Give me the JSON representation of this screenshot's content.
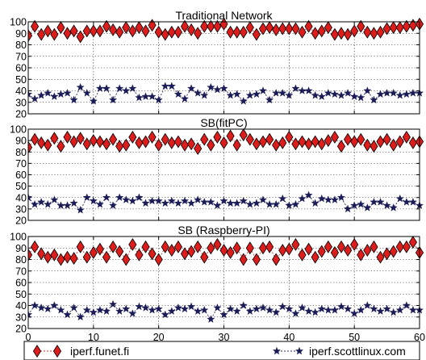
{
  "chart_data": [
    {
      "type": "line",
      "title": "Traditional Network",
      "x": [
        0,
        1,
        2,
        3,
        4,
        5,
        6,
        7,
        8,
        9,
        10,
        11,
        12,
        13,
        14,
        15,
        16,
        17,
        18,
        19,
        20,
        21,
        22,
        23,
        24,
        25,
        26,
        27,
        28,
        29,
        30,
        31,
        32,
        33,
        34,
        35,
        36,
        37,
        38,
        39,
        40,
        41,
        42,
        43,
        44,
        45,
        46,
        47,
        48,
        49,
        50,
        51,
        52,
        53,
        54,
        55,
        56,
        57,
        58,
        59,
        60
      ],
      "xlim": [
        0,
        60
      ],
      "ylim": [
        20,
        100
      ],
      "yticks": [
        20,
        30,
        40,
        50,
        60,
        70,
        80,
        90,
        100
      ],
      "grid": true,
      "series": [
        {
          "name": "iperf.funet.fi",
          "values": [
            88,
            96,
            89,
            92,
            89,
            95,
            90,
            92,
            87,
            92,
            92,
            92,
            96,
            93,
            91,
            95,
            92,
            95,
            92,
            97,
            91,
            89,
            91,
            91,
            96,
            93,
            90,
            96,
            96,
            96,
            98,
            91,
            91,
            91,
            95,
            89,
            94,
            95,
            93,
            94,
            94,
            94,
            91,
            96,
            90,
            92,
            95,
            89,
            90,
            89,
            92,
            96,
            91,
            90,
            91,
            94,
            95,
            95,
            96,
            97,
            98
          ]
        },
        {
          "name": "iperf.scottlinux.com",
          "values": [
            37,
            33,
            36,
            38,
            35,
            37,
            38,
            32,
            43,
            38,
            31,
            42,
            42,
            32,
            42,
            40,
            42,
            34,
            35,
            35,
            32,
            44,
            44,
            37,
            33,
            42,
            38,
            36,
            43,
            41,
            42,
            36,
            37,
            31,
            36,
            37,
            40,
            32,
            38,
            38,
            36,
            42,
            40,
            40,
            36,
            35,
            38,
            37,
            36,
            38,
            35,
            34,
            40,
            32,
            37,
            38,
            38,
            36,
            37,
            38,
            38
          ]
        }
      ]
    },
    {
      "type": "line",
      "title": "SB(fitPC)",
      "x": [
        0,
        1,
        2,
        3,
        4,
        5,
        6,
        7,
        8,
        9,
        10,
        11,
        12,
        13,
        14,
        15,
        16,
        17,
        18,
        19,
        20,
        21,
        22,
        23,
        24,
        25,
        26,
        27,
        28,
        29,
        30,
        31,
        32,
        33,
        34,
        35,
        36,
        37,
        38,
        39,
        40,
        41,
        42,
        43,
        44,
        45,
        46,
        47,
        48,
        49,
        50,
        51,
        52,
        53,
        54,
        55,
        56,
        57,
        58,
        59,
        60
      ],
      "xlim": [
        0,
        60
      ],
      "ylim": [
        20,
        100
      ],
      "yticks": [
        20,
        30,
        40,
        50,
        60,
        70,
        80,
        90,
        100
      ],
      "grid": true,
      "series": [
        {
          "name": "iperf.funet.fi",
          "values": [
            84,
            91,
            88,
            86,
            92,
            85,
            93,
            89,
            92,
            87,
            90,
            89,
            87,
            91,
            85,
            86,
            93,
            88,
            89,
            93,
            86,
            91,
            88,
            89,
            86,
            87,
            83,
            91,
            86,
            93,
            88,
            94,
            86,
            95,
            91,
            87,
            89,
            91,
            86,
            88,
            93,
            87,
            89,
            87,
            89,
            87,
            90,
            93,
            85,
            91,
            89,
            91,
            86,
            85,
            89,
            91,
            86,
            89,
            93,
            88,
            89
          ]
        },
        {
          "name": "iperf.scottlinux.com",
          "values": [
            40,
            34,
            36,
            34,
            38,
            33,
            33,
            35,
            29,
            40,
            37,
            34,
            40,
            33,
            40,
            38,
            37,
            40,
            35,
            37,
            37,
            35,
            37,
            35,
            37,
            35,
            38,
            36,
            36,
            33,
            37,
            35,
            35,
            37,
            34,
            35,
            38,
            34,
            34,
            39,
            33,
            34,
            39,
            42,
            35,
            39,
            38,
            38,
            40,
            30,
            33,
            34,
            31,
            36,
            36,
            33,
            31,
            39,
            36,
            36,
            33
          ]
        }
      ]
    },
    {
      "type": "line",
      "title": "SB (Raspberry-PI)",
      "x": [
        0,
        1,
        2,
        3,
        4,
        5,
        6,
        7,
        8,
        9,
        10,
        11,
        12,
        13,
        14,
        15,
        16,
        17,
        18,
        19,
        20,
        21,
        22,
        23,
        24,
        25,
        26,
        27,
        28,
        29,
        30,
        31,
        32,
        33,
        34,
        35,
        36,
        37,
        38,
        39,
        40,
        41,
        42,
        43,
        44,
        45,
        46,
        47,
        48,
        49,
        50,
        51,
        52,
        53,
        54,
        55,
        56,
        57,
        58,
        59,
        60
      ],
      "xlim": [
        0,
        60
      ],
      "ylim": [
        20,
        100
      ],
      "yticks": [
        20,
        30,
        40,
        50,
        60,
        70,
        80,
        90,
        100
      ],
      "xticks": [
        0,
        10,
        20,
        30,
        40,
        50,
        60
      ],
      "grid": true,
      "series": [
        {
          "name": "iperf.funet.fi",
          "values": [
            84,
            91,
            85,
            82,
            84,
            80,
            82,
            81,
            91,
            82,
            86,
            89,
            82,
            91,
            87,
            80,
            93,
            84,
            91,
            85,
            80,
            91,
            88,
            91,
            85,
            87,
            91,
            82,
            90,
            93,
            88,
            86,
            90,
            80,
            90,
            80,
            90,
            91,
            80,
            88,
            89,
            93,
            84,
            89,
            82,
            87,
            91,
            86,
            91,
            88,
            93,
            84,
            88,
            91,
            82,
            85,
            87,
            91,
            91,
            95,
            86
          ]
        },
        {
          "name": "iperf.scottlinux.com",
          "values": [
            32,
            40,
            38,
            37,
            40,
            36,
            32,
            38,
            30,
            36,
            34,
            36,
            35,
            41,
            35,
            37,
            33,
            39,
            38,
            36,
            37,
            32,
            35,
            38,
            37,
            39,
            35,
            36,
            28,
            38,
            32,
            37,
            35,
            40,
            35,
            37,
            38,
            36,
            34,
            39,
            37,
            33,
            38,
            35,
            34,
            37,
            36,
            36,
            39,
            37,
            33,
            36,
            40,
            37,
            35,
            37,
            34,
            36,
            40,
            36,
            36
          ]
        }
      ]
    }
  ],
  "legend": {
    "placement": "bottom",
    "entries": [
      "iperf.funet.fi",
      "iperf.scottlinux.com"
    ]
  },
  "colors": {
    "funet_fill": "#dd1c1c",
    "funet_line": "#d33232",
    "funet_edge": "#000000",
    "scott_fill": "#1b1b56",
    "scott_line": "#2a2a6a",
    "grid": "#000000"
  }
}
